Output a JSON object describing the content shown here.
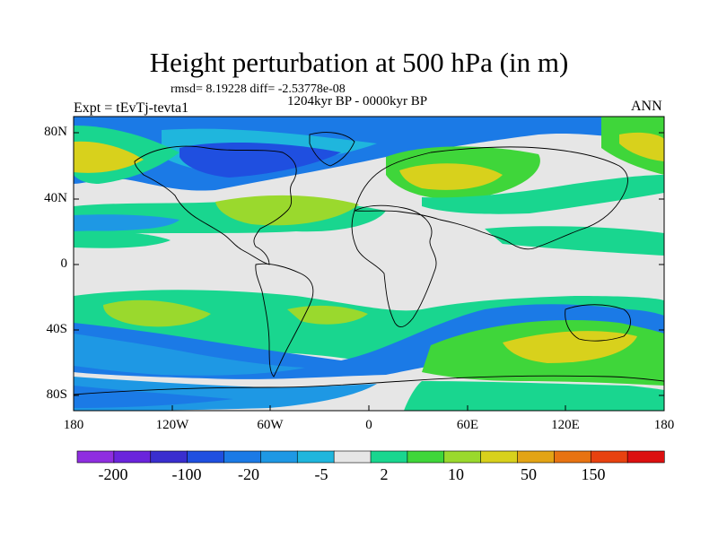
{
  "title": "Height perturbation at 500 hPa (in m)",
  "stats": "rmsd= 8.19228 diff= -2.53778e-08",
  "period": "1204kyr BP - 0000kyr BP",
  "experiment": "Expt = tEvTj-tevta1",
  "season": "ANN",
  "lat_labels": [
    "80N",
    "40N",
    "0",
    "40S",
    "80S"
  ],
  "lon_labels": [
    "180",
    "120W",
    "60W",
    "0",
    "60E",
    "120E",
    "180"
  ],
  "colorbar": {
    "labels": [
      "-200",
      "-100",
      "-20",
      "-5",
      "2",
      "10",
      "50",
      "150"
    ],
    "colors": [
      "#8f2ee0",
      "#6a24dc",
      "#3a2ecf",
      "#1f4fe0",
      "#1b7ae6",
      "#1e98e4",
      "#1fb6dd",
      "#e6e6e6",
      "#19d68f",
      "#3fd63a",
      "#9ad92d",
      "#d8d11c",
      "#e3a415",
      "#e87312",
      "#e8420f",
      "#dc1010"
    ]
  },
  "map_colors": {
    "deep_blue": "#1f4fe0",
    "mid_blue": "#1b7ae6",
    "light_blue": "#1e98e4",
    "cyan": "#1fb6dd",
    "neutral": "#e6e6e6",
    "teal_green": "#19d68f",
    "green": "#3fd63a",
    "yellow_green": "#9ad92d",
    "olive": "#d8d11c"
  }
}
